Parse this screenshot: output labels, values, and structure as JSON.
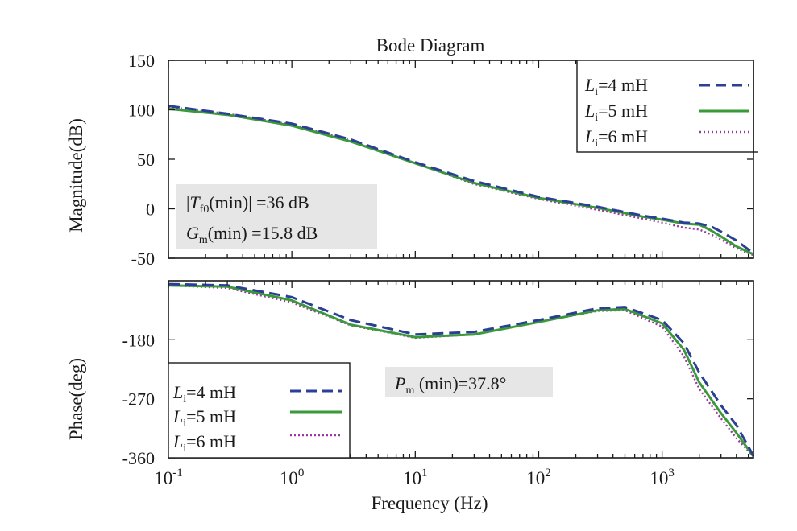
{
  "chart_data": {
    "type": "line",
    "title": "Bode Diagram",
    "xlabel": "Frequency (Hz)",
    "x_scale": "log",
    "xlim": [
      0.1,
      5500
    ],
    "x_ticks": [
      {
        "value": 0.1,
        "base": "10",
        "exp": "-1"
      },
      {
        "value": 1,
        "base": "10",
        "exp": "0"
      },
      {
        "value": 10,
        "base": "10",
        "exp": "1"
      },
      {
        "value": 100,
        "base": "10",
        "exp": "2"
      },
      {
        "value": 1000,
        "base": "10",
        "exp": "3"
      }
    ],
    "colors": {
      "Li_4mH": "#2b3f94",
      "Li_5mH": "#3a9a3a",
      "Li_6mH": "#9a3aa0"
    },
    "magnitude": {
      "ylabel": "Magnitude(dB)",
      "ylim": [
        -50,
        150
      ],
      "y_ticks": [
        "150",
        "100",
        "50",
        "0",
        "-50"
      ],
      "annotation": {
        "line1_prefix": "|",
        "line1_sym": "T",
        "line1_sub": "f0",
        "line1_rest": "(min)| =36 dB",
        "line2_sym": "G",
        "line2_sub": "m",
        "line2_rest": "(min) =15.8 dB"
      },
      "legend": [
        {
          "sym": "L",
          "sub": "i",
          "rest": "=4 mH",
          "style": "dashed",
          "color": "#2b3f94"
        },
        {
          "sym": "L",
          "sub": "i",
          "rest": "=5 mH",
          "style": "solid",
          "color": "#3a9a3a"
        },
        {
          "sym": "L",
          "sub": "i",
          "rest": "=6 mH",
          "style": "dotted",
          "color": "#9a3aa0"
        }
      ],
      "series": [
        {
          "name": "Li=4 mH",
          "style": "dashed",
          "color": "#2b3f94",
          "points": [
            [
              0.1,
              104
            ],
            [
              0.3,
              96
            ],
            [
              1,
              86
            ],
            [
              3,
              70
            ],
            [
              10,
              47
            ],
            [
              30,
              28
            ],
            [
              100,
              12
            ],
            [
              300,
              2
            ],
            [
              700,
              -7
            ],
            [
              1000,
              -10
            ],
            [
              1500,
              -14
            ],
            [
              2000,
              -15
            ],
            [
              2500,
              -18
            ],
            [
              3000,
              -23
            ],
            [
              4000,
              -32
            ],
            [
              5500,
              -45
            ]
          ]
        },
        {
          "name": "Li=5 mH",
          "style": "solid",
          "color": "#3a9a3a",
          "points": [
            [
              0.1,
              101
            ],
            [
              0.3,
              95
            ],
            [
              1,
              84
            ],
            [
              3,
              68
            ],
            [
              10,
              46
            ],
            [
              30,
              26
            ],
            [
              100,
              11
            ],
            [
              300,
              1
            ],
            [
              700,
              -8
            ],
            [
              1000,
              -11
            ],
            [
              1500,
              -15
            ],
            [
              2000,
              -16
            ],
            [
              2500,
              -22
            ],
            [
              3000,
              -28
            ],
            [
              4000,
              -38
            ],
            [
              5500,
              -46
            ]
          ]
        },
        {
          "name": "Li=6 mH",
          "style": "dotted",
          "color": "#9a3aa0",
          "points": [
            [
              0.1,
              103
            ],
            [
              0.3,
              96
            ],
            [
              1,
              85
            ],
            [
              3,
              69
            ],
            [
              10,
              46
            ],
            [
              30,
              25
            ],
            [
              100,
              10
            ],
            [
              300,
              -1
            ],
            [
              700,
              -10
            ],
            [
              1000,
              -14
            ],
            [
              1500,
              -19
            ],
            [
              2000,
              -21
            ],
            [
              2500,
              -26
            ],
            [
              3000,
              -31
            ],
            [
              4000,
              -40
            ],
            [
              5500,
              -47
            ]
          ]
        }
      ]
    },
    "phase": {
      "ylabel": "Phase(deg)",
      "ylim": [
        -360,
        -90
      ],
      "y_ticks": [
        "-180",
        "-270",
        "-360"
      ],
      "y_tick_values": [
        -180,
        -270,
        -360
      ],
      "annotation": {
        "sym": "P",
        "sub": "m",
        "rest": " (min)=37.8°"
      },
      "legend": [
        {
          "sym": "L",
          "sub": "i",
          "rest": "=4 mH",
          "style": "dashed",
          "color": "#2b3f94"
        },
        {
          "sym": "L",
          "sub": "i",
          "rest": "=5 mH",
          "style": "solid",
          "color": "#3a9a3a"
        },
        {
          "sym": "L",
          "sub": "i",
          "rest": "=6 mH",
          "style": "dotted",
          "color": "#9a3aa0"
        }
      ],
      "series": [
        {
          "name": "Li=4 mH",
          "style": "dashed",
          "color": "#2b3f94",
          "points": [
            [
              0.1,
              -95
            ],
            [
              0.3,
              -97
            ],
            [
              1,
              -115
            ],
            [
              3,
              -150
            ],
            [
              10,
              -172
            ],
            [
              30,
              -168
            ],
            [
              100,
              -150
            ],
            [
              300,
              -132
            ],
            [
              500,
              -130
            ],
            [
              1000,
              -150
            ],
            [
              1500,
              -185
            ],
            [
              2000,
              -230
            ],
            [
              3000,
              -280
            ],
            [
              4000,
              -310
            ],
            [
              5500,
              -357
            ]
          ]
        },
        {
          "name": "Li=5 mH",
          "style": "solid",
          "color": "#3a9a3a",
          "points": [
            [
              0.1,
              -97
            ],
            [
              0.3,
              -99
            ],
            [
              1,
              -120
            ],
            [
              3,
              -157
            ],
            [
              10,
              -176
            ],
            [
              30,
              -172
            ],
            [
              100,
              -153
            ],
            [
              300,
              -135
            ],
            [
              500,
              -133
            ],
            [
              1000,
              -155
            ],
            [
              1500,
              -195
            ],
            [
              2000,
              -245
            ],
            [
              3000,
              -292
            ],
            [
              4000,
              -322
            ],
            [
              5500,
              -358
            ]
          ]
        },
        {
          "name": "Li=6 mH",
          "style": "dotted",
          "color": "#9a3aa0",
          "points": [
            [
              0.1,
              -97
            ],
            [
              0.3,
              -101
            ],
            [
              1,
              -123
            ],
            [
              3,
              -158
            ],
            [
              10,
              -177
            ],
            [
              30,
              -172
            ],
            [
              100,
              -153
            ],
            [
              300,
              -136
            ],
            [
              500,
              -135
            ],
            [
              1000,
              -160
            ],
            [
              1500,
              -205
            ],
            [
              2000,
              -255
            ],
            [
              3000,
              -300
            ],
            [
              4000,
              -330
            ],
            [
              5500,
              -358
            ]
          ]
        }
      ]
    }
  }
}
